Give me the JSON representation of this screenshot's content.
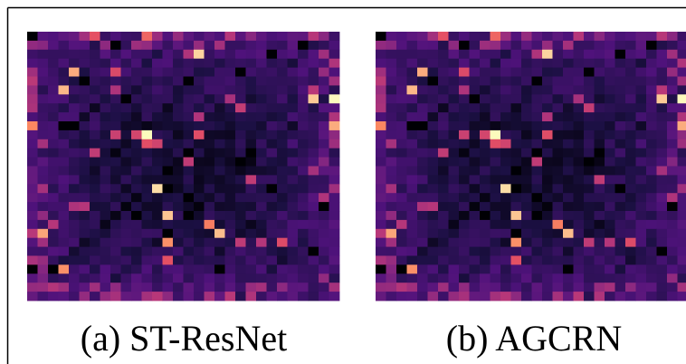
{
  "panels": [
    {
      "caption": "(a) ST-ResNet"
    },
    {
      "caption": "(b) AGCRN"
    }
  ]
}
